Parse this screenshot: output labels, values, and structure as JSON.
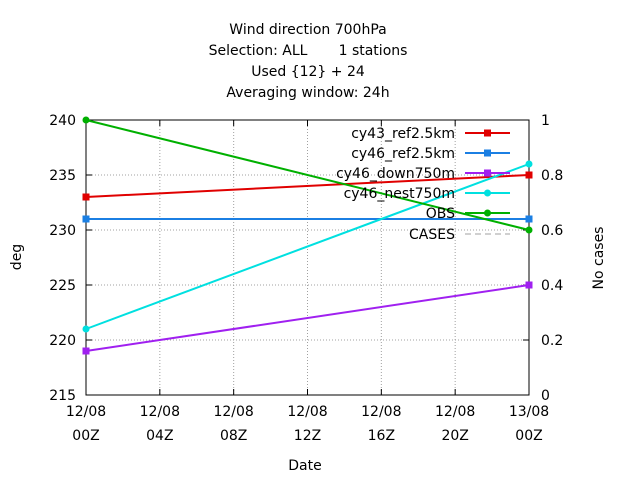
{
  "chart_data": {
    "type": "line",
    "title_lines": [
      "Wind direction 700hPa",
      "Selection: ALL       1 stations",
      "Used {12} + 24",
      "Averaging window: 24h"
    ],
    "xlabel": "Date",
    "ylabel": "deg",
    "y2label": "No cases",
    "x_ticks": [
      {
        "line1": "12/08",
        "line2": "00Z"
      },
      {
        "line1": "12/08",
        "line2": "04Z"
      },
      {
        "line1": "12/08",
        "line2": "08Z"
      },
      {
        "line1": "12/08",
        "line2": "12Z"
      },
      {
        "line1": "12/08",
        "line2": "16Z"
      },
      {
        "line1": "12/08",
        "line2": "20Z"
      },
      {
        "line1": "13/08",
        "line2": "00Z"
      }
    ],
    "xlim_hours": [
      0,
      24
    ],
    "ylim": [
      215,
      240
    ],
    "y_ticks": [
      "215",
      "220",
      "225",
      "230",
      "235",
      "240"
    ],
    "y2lim": [
      0,
      1
    ],
    "y2_ticks": [
      "0",
      "0.2",
      "0.4",
      "0.6",
      "0.8",
      "1"
    ],
    "grid": true,
    "legend_position": "top-right",
    "series": [
      {
        "name": "cy43_ref2.5km",
        "color": "#e00000",
        "marker": "square",
        "x_hours": [
          0,
          24
        ],
        "values": [
          233,
          235
        ]
      },
      {
        "name": "cy46_ref2.5km",
        "color": "#1b7fe3",
        "marker": "square",
        "x_hours": [
          0,
          24
        ],
        "values": [
          231,
          231
        ]
      },
      {
        "name": "cy46_down750m",
        "color": "#a020f0",
        "marker": "square",
        "x_hours": [
          0,
          24
        ],
        "values": [
          219,
          225
        ]
      },
      {
        "name": "cy46_nest750m",
        "color": "#00e0e0",
        "marker": "circle",
        "x_hours": [
          0,
          24
        ],
        "values": [
          221,
          236
        ]
      },
      {
        "name": "OBS",
        "color": "#00b000",
        "marker": "circle",
        "x_hours": [
          0,
          24
        ],
        "values": [
          240,
          230
        ]
      }
    ],
    "cases_series": {
      "name": "CASES",
      "color": "#a0a0a0"
    }
  }
}
